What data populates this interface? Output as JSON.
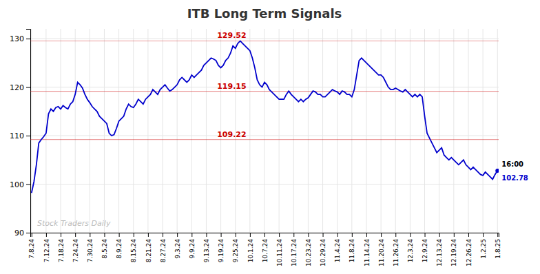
{
  "chart_data": {
    "type": "line",
    "title": "ITB Long Term Signals",
    "categories": [
      "7.8.24",
      null,
      null,
      null,
      null,
      null,
      "7.12.24",
      null,
      null,
      null,
      null,
      null,
      "7.18.24",
      null,
      null,
      null,
      null,
      null,
      "7.24.24",
      null,
      null,
      null,
      null,
      null,
      "7.30.24",
      null,
      null,
      null,
      null,
      null,
      "8.5.24",
      null,
      null,
      null,
      null,
      null,
      "8.9.24",
      null,
      null,
      null,
      null,
      null,
      "8.15.24",
      null,
      null,
      null,
      null,
      null,
      "8.21.24",
      null,
      null,
      null,
      null,
      null,
      "8.27.24",
      null,
      null,
      null,
      null,
      null,
      "9.3.24",
      null,
      null,
      null,
      null,
      null,
      "9.9.24",
      null,
      null,
      null,
      null,
      null,
      "9.13.24",
      null,
      null,
      null,
      null,
      null,
      "9.19.24",
      null,
      null,
      null,
      null,
      null,
      "9.25.24",
      null,
      null,
      null,
      null,
      null,
      "10.1.24",
      null,
      null,
      null,
      null,
      null,
      "10.7.24",
      null,
      null,
      null,
      null,
      null,
      "10.11.24",
      null,
      null,
      null,
      null,
      null,
      "10.17.24",
      null,
      null,
      null,
      null,
      null,
      "10.23.24",
      null,
      null,
      null,
      null,
      null,
      "10.29.24",
      null,
      null,
      null,
      null,
      null,
      "11.4.24",
      null,
      null,
      null,
      null,
      null,
      "11.8.24",
      null,
      null,
      null,
      null,
      null,
      "11.14.24",
      null,
      null,
      null,
      null,
      null,
      "11.20.24",
      null,
      null,
      null,
      null,
      null,
      "11.26.24",
      null,
      null,
      null,
      null,
      null,
      "12.3.24",
      null,
      null,
      null,
      null,
      null,
      "12.9.24",
      null,
      null,
      null,
      null,
      null,
      "12.13.24",
      null,
      null,
      null,
      null,
      null,
      "12.19.24",
      null,
      null,
      null,
      null,
      null,
      "12.26.24",
      null,
      null,
      null,
      null,
      null,
      "1.2.25",
      null,
      null,
      null,
      null,
      null,
      "1.8.25"
    ],
    "values": [
      98.2,
      100.5,
      104.0,
      108.5,
      109.2,
      109.8,
      110.5,
      114.5,
      115.5,
      115.0,
      115.8,
      116.0,
      115.5,
      116.2,
      115.8,
      115.5,
      116.5,
      117.0,
      118.5,
      121.0,
      120.5,
      119.8,
      118.5,
      117.5,
      116.8,
      116.0,
      115.5,
      115.0,
      114.0,
      113.5,
      113.0,
      112.5,
      110.5,
      110.0,
      110.2,
      111.5,
      113.0,
      113.5,
      114.0,
      115.5,
      116.5,
      116.0,
      115.8,
      116.5,
      117.5,
      117.0,
      116.5,
      117.5,
      118.0,
      118.5,
      119.5,
      119.0,
      118.5,
      119.5,
      120.0,
      120.5,
      119.8,
      119.2,
      119.5,
      120.0,
      120.5,
      121.5,
      122.0,
      121.5,
      121.0,
      121.5,
      122.5,
      122.0,
      122.5,
      123.0,
      123.5,
      124.5,
      125.0,
      125.5,
      126.0,
      125.8,
      125.5,
      124.5,
      124.0,
      124.5,
      125.5,
      126.0,
      127.0,
      128.5,
      128.0,
      129.0,
      129.52,
      129.0,
      128.5,
      128.0,
      127.5,
      126.0,
      124.0,
      121.5,
      120.5,
      120.0,
      121.0,
      120.5,
      119.5,
      119.0,
      118.5,
      118.0,
      117.5,
      117.5,
      117.5,
      118.5,
      119.2,
      118.5,
      118.0,
      117.5,
      117.0,
      117.5,
      117.0,
      117.5,
      117.8,
      118.5,
      119.2,
      119.0,
      118.5,
      118.5,
      118.0,
      118.0,
      118.5,
      119.0,
      119.5,
      119.2,
      119.0,
      118.5,
      119.2,
      119.0,
      118.5,
      118.5,
      118.0,
      119.5,
      122.5,
      125.5,
      126.0,
      125.5,
      125.0,
      124.5,
      124.0,
      123.5,
      123.0,
      122.5,
      122.5,
      122.0,
      121.0,
      120.0,
      119.5,
      119.5,
      119.8,
      119.5,
      119.2,
      119.0,
      119.5,
      119.0,
      118.5,
      118.0,
      118.5,
      118.0,
      118.5,
      118.0,
      114.0,
      110.5,
      109.5,
      108.5,
      107.5,
      106.5,
      107.0,
      107.5,
      106.0,
      105.5,
      105.0,
      105.5,
      105.0,
      104.5,
      104.0,
      104.5,
      105.0,
      104.0,
      103.5,
      103.0,
      103.5,
      103.0,
      102.5,
      102.0,
      101.8,
      102.5,
      102.0,
      101.5,
      101.0,
      102.0,
      102.78
    ],
    "color": "#0000cc",
    "ylim": [
      90,
      132
    ],
    "yticks": [
      90,
      100,
      110,
      120,
      130
    ],
    "grid": true,
    "reference_lines": [
      {
        "value": 129.52,
        "label": "129.52",
        "color": "#cc0000"
      },
      {
        "value": 119.15,
        "label": "119.15",
        "color": "#cc0000"
      },
      {
        "value": 109.22,
        "label": "109.22",
        "color": "#cc0000"
      }
    ],
    "annotations": [
      {
        "text": "16:00"
      },
      {
        "text": "102.78"
      }
    ],
    "watermark": "Stock Traders Daily"
  }
}
